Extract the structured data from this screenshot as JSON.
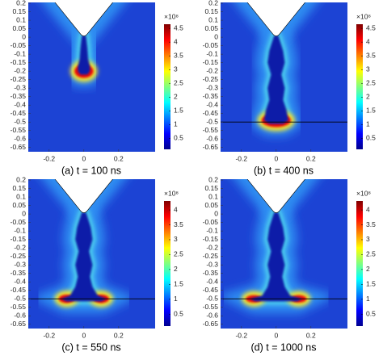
{
  "chart_data": [
    {
      "type": "heatmap",
      "caption": "(a) t = 100 ns",
      "xlim": [
        -0.32,
        0.41
      ],
      "ylim": [
        -0.675,
        0.205
      ],
      "xticks": [
        -0.2,
        0,
        0.2
      ],
      "yticks": [
        0.2,
        0.15,
        0.1,
        0.05,
        0,
        -0.05,
        -0.1,
        -0.15,
        -0.2,
        -0.25,
        -0.3,
        -0.35,
        -0.4,
        -0.45,
        -0.5,
        -0.55,
        -0.6,
        -0.65
      ],
      "colorbar": {
        "label": "×10⁸",
        "lim": [
          0.1,
          4.65
        ],
        "ticks": [
          0.5,
          1,
          1.5,
          2,
          2.5,
          3,
          3.5,
          4,
          4.5
        ]
      }
    },
    {
      "type": "heatmap",
      "caption": "(b) t = 400 ns",
      "xlim": [
        -0.32,
        0.41
      ],
      "ylim": [
        -0.675,
        0.205
      ],
      "xticks": [
        -0.2,
        0,
        0.2
      ],
      "yticks": [
        0.2,
        0.15,
        0.1,
        0.05,
        0,
        -0.05,
        -0.1,
        -0.15,
        -0.2,
        -0.25,
        -0.3,
        -0.35,
        -0.4,
        -0.45,
        -0.5,
        -0.55,
        -0.6,
        -0.65
      ],
      "colorbar": {
        "label": "×10⁸",
        "lim": [
          0.1,
          4.65
        ],
        "ticks": [
          0.5,
          1,
          1.5,
          2,
          2.5,
          3,
          3.5,
          4,
          4.5
        ]
      }
    },
    {
      "type": "heatmap",
      "caption": "(c) t = 550 ns",
      "xlim": [
        -0.32,
        0.41
      ],
      "ylim": [
        -0.675,
        0.205
      ],
      "xticks": [
        -0.2,
        0,
        0.2
      ],
      "yticks": [
        0.2,
        0.15,
        0.1,
        0.05,
        0,
        -0.05,
        -0.1,
        -0.15,
        -0.2,
        -0.25,
        -0.3,
        -0.35,
        -0.4,
        -0.45,
        -0.5,
        -0.55,
        -0.6,
        -0.65
      ],
      "colorbar": {
        "label": "×10⁸",
        "lim": [
          0.1,
          4.3
        ],
        "ticks": [
          0.5,
          1,
          1.5,
          2,
          2.5,
          3,
          3.5,
          4
        ]
      }
    },
    {
      "type": "heatmap",
      "caption": "(d) t = 1000 ns",
      "xlim": [
        -0.32,
        0.41
      ],
      "ylim": [
        -0.675,
        0.205
      ],
      "xticks": [
        -0.2,
        0,
        0.2
      ],
      "yticks": [
        0.2,
        0.15,
        0.1,
        0.05,
        0,
        -0.05,
        -0.1,
        -0.15,
        -0.2,
        -0.25,
        -0.3,
        -0.35,
        -0.4,
        -0.45,
        -0.5,
        -0.55,
        -0.6,
        -0.65
      ],
      "colorbar": {
        "label": "×10⁸",
        "lim": [
          0.1,
          4.3
        ],
        "ticks": [
          0.5,
          1,
          1.5,
          2,
          2.5,
          3,
          3.5,
          4
        ]
      }
    }
  ]
}
